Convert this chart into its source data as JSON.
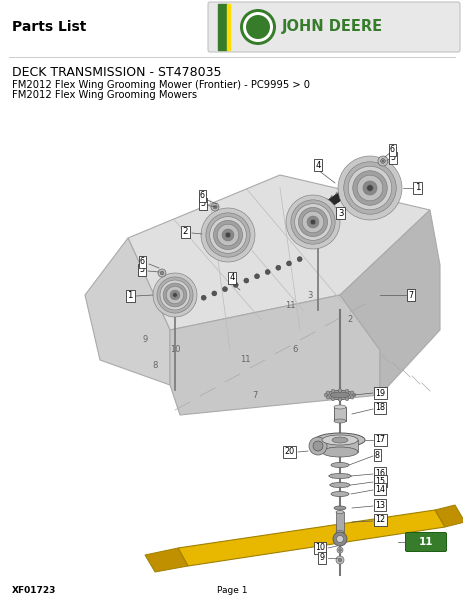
{
  "title": "DECK TRANSMISSION - ST478035",
  "subtitle1": "FM2012 Flex Wing Grooming Mower (Frontier) - PC9995 > 0",
  "subtitle2": "FM2012 Flex Wing Grooming Mowers",
  "parts_list_label": "Parts List",
  "page_label": "Page 1",
  "doc_id": "XF01723",
  "bg_color": "#ffffff",
  "header_bg": "#e8e8e8",
  "jd_green": "#367c2b",
  "jd_yellow": "#ffde00",
  "text_color": "#000000",
  "blade_color": "#e8b800",
  "deck_face": "#e0e0e0",
  "deck_edge": "#aaaaaa",
  "deck_dark": "#c0c0c0"
}
